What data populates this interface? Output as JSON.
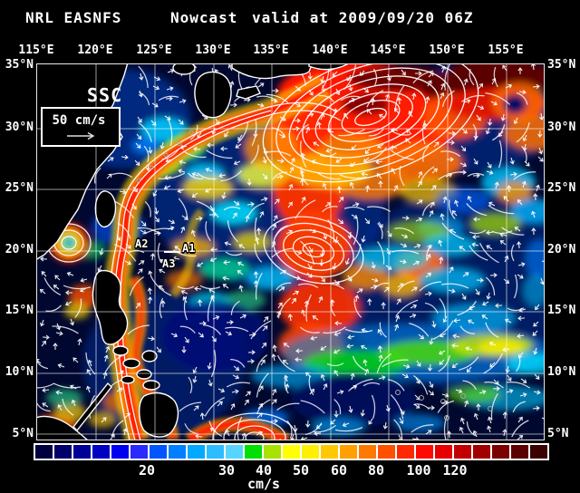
{
  "title": {
    "product": "NRL EASNFS",
    "mode": "Nowcast",
    "valid": "valid at 2009/09/20 06Z"
  },
  "axes": {
    "lon_labels": [
      "115°E",
      "120°E",
      "125°E",
      "130°E",
      "135°E",
      "140°E",
      "145°E",
      "150°E",
      "155°E"
    ],
    "lat_labels": [
      "35°N",
      "30°N",
      "25°N",
      "20°N",
      "15°N",
      "10°N",
      "5°N"
    ]
  },
  "legend": {
    "field": "SSC",
    "reference": "50 cm/s"
  },
  "station_markers": [
    "A1",
    "A2",
    "A3"
  ],
  "colorbar": {
    "unit": "cm/s",
    "tick_labels": [
      "20",
      "30",
      "40",
      "50",
      "60",
      "80",
      "100",
      "120"
    ],
    "colors": [
      "#000041",
      "#00006B",
      "#000096",
      "#0000C3",
      "#0000F1",
      "#2A2AFF",
      "#0055FF",
      "#0080FF",
      "#00AAFF",
      "#2BBDFF",
      "#55D5FF",
      "#00E000",
      "#AAE200",
      "#FFFF00",
      "#FFF000",
      "#FFC800",
      "#FFA000",
      "#FF7800",
      "#FF5000",
      "#FF2800",
      "#FF0A00",
      "#E60000",
      "#C30000",
      "#A00000",
      "#7D0000",
      "#5A0000",
      "#3C0000"
    ],
    "accent_white": "#FFFFFF"
  }
}
